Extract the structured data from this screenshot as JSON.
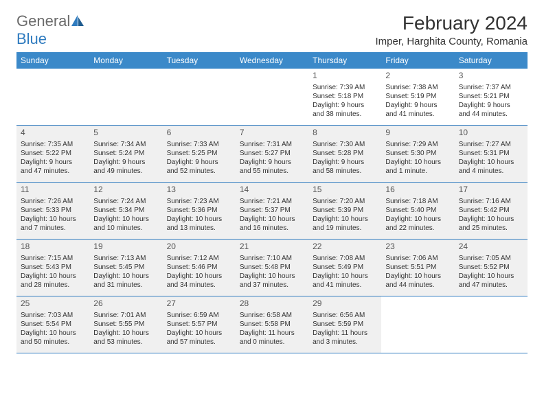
{
  "logo": {
    "general": "General",
    "blue": "Blue"
  },
  "title": "February 2024",
  "location": "Imper, Harghita County, Romania",
  "headers": [
    "Sunday",
    "Monday",
    "Tuesday",
    "Wednesday",
    "Thursday",
    "Friday",
    "Saturday"
  ],
  "colors": {
    "header_bg": "#3b89c9",
    "header_text": "#ffffff",
    "border": "#2f7bbf",
    "shaded": "#f0f0f0",
    "text": "#333333",
    "logo_gray": "#6b6b6b",
    "logo_blue": "#2f7bbf"
  },
  "weeks": [
    [
      {
        "n": "",
        "shaded": false,
        "lines": []
      },
      {
        "n": "",
        "shaded": false,
        "lines": []
      },
      {
        "n": "",
        "shaded": false,
        "lines": []
      },
      {
        "n": "",
        "shaded": false,
        "lines": []
      },
      {
        "n": "1",
        "shaded": false,
        "lines": [
          "Sunrise: 7:39 AM",
          "Sunset: 5:18 PM",
          "Daylight: 9 hours",
          "and 38 minutes."
        ]
      },
      {
        "n": "2",
        "shaded": false,
        "lines": [
          "Sunrise: 7:38 AM",
          "Sunset: 5:19 PM",
          "Daylight: 9 hours",
          "and 41 minutes."
        ]
      },
      {
        "n": "3",
        "shaded": false,
        "lines": [
          "Sunrise: 7:37 AM",
          "Sunset: 5:21 PM",
          "Daylight: 9 hours",
          "and 44 minutes."
        ]
      }
    ],
    [
      {
        "n": "4",
        "shaded": true,
        "lines": [
          "Sunrise: 7:35 AM",
          "Sunset: 5:22 PM",
          "Daylight: 9 hours",
          "and 47 minutes."
        ]
      },
      {
        "n": "5",
        "shaded": true,
        "lines": [
          "Sunrise: 7:34 AM",
          "Sunset: 5:24 PM",
          "Daylight: 9 hours",
          "and 49 minutes."
        ]
      },
      {
        "n": "6",
        "shaded": true,
        "lines": [
          "Sunrise: 7:33 AM",
          "Sunset: 5:25 PM",
          "Daylight: 9 hours",
          "and 52 minutes."
        ]
      },
      {
        "n": "7",
        "shaded": true,
        "lines": [
          "Sunrise: 7:31 AM",
          "Sunset: 5:27 PM",
          "Daylight: 9 hours",
          "and 55 minutes."
        ]
      },
      {
        "n": "8",
        "shaded": true,
        "lines": [
          "Sunrise: 7:30 AM",
          "Sunset: 5:28 PM",
          "Daylight: 9 hours",
          "and 58 minutes."
        ]
      },
      {
        "n": "9",
        "shaded": true,
        "lines": [
          "Sunrise: 7:29 AM",
          "Sunset: 5:30 PM",
          "Daylight: 10 hours",
          "and 1 minute."
        ]
      },
      {
        "n": "10",
        "shaded": true,
        "lines": [
          "Sunrise: 7:27 AM",
          "Sunset: 5:31 PM",
          "Daylight: 10 hours",
          "and 4 minutes."
        ]
      }
    ],
    [
      {
        "n": "11",
        "shaded": true,
        "lines": [
          "Sunrise: 7:26 AM",
          "Sunset: 5:33 PM",
          "Daylight: 10 hours",
          "and 7 minutes."
        ]
      },
      {
        "n": "12",
        "shaded": true,
        "lines": [
          "Sunrise: 7:24 AM",
          "Sunset: 5:34 PM",
          "Daylight: 10 hours",
          "and 10 minutes."
        ]
      },
      {
        "n": "13",
        "shaded": true,
        "lines": [
          "Sunrise: 7:23 AM",
          "Sunset: 5:36 PM",
          "Daylight: 10 hours",
          "and 13 minutes."
        ]
      },
      {
        "n": "14",
        "shaded": true,
        "lines": [
          "Sunrise: 7:21 AM",
          "Sunset: 5:37 PM",
          "Daylight: 10 hours",
          "and 16 minutes."
        ]
      },
      {
        "n": "15",
        "shaded": true,
        "lines": [
          "Sunrise: 7:20 AM",
          "Sunset: 5:39 PM",
          "Daylight: 10 hours",
          "and 19 minutes."
        ]
      },
      {
        "n": "16",
        "shaded": true,
        "lines": [
          "Sunrise: 7:18 AM",
          "Sunset: 5:40 PM",
          "Daylight: 10 hours",
          "and 22 minutes."
        ]
      },
      {
        "n": "17",
        "shaded": true,
        "lines": [
          "Sunrise: 7:16 AM",
          "Sunset: 5:42 PM",
          "Daylight: 10 hours",
          "and 25 minutes."
        ]
      }
    ],
    [
      {
        "n": "18",
        "shaded": true,
        "lines": [
          "Sunrise: 7:15 AM",
          "Sunset: 5:43 PM",
          "Daylight: 10 hours",
          "and 28 minutes."
        ]
      },
      {
        "n": "19",
        "shaded": true,
        "lines": [
          "Sunrise: 7:13 AM",
          "Sunset: 5:45 PM",
          "Daylight: 10 hours",
          "and 31 minutes."
        ]
      },
      {
        "n": "20",
        "shaded": true,
        "lines": [
          "Sunrise: 7:12 AM",
          "Sunset: 5:46 PM",
          "Daylight: 10 hours",
          "and 34 minutes."
        ]
      },
      {
        "n": "21",
        "shaded": true,
        "lines": [
          "Sunrise: 7:10 AM",
          "Sunset: 5:48 PM",
          "Daylight: 10 hours",
          "and 37 minutes."
        ]
      },
      {
        "n": "22",
        "shaded": true,
        "lines": [
          "Sunrise: 7:08 AM",
          "Sunset: 5:49 PM",
          "Daylight: 10 hours",
          "and 41 minutes."
        ]
      },
      {
        "n": "23",
        "shaded": true,
        "lines": [
          "Sunrise: 7:06 AM",
          "Sunset: 5:51 PM",
          "Daylight: 10 hours",
          "and 44 minutes."
        ]
      },
      {
        "n": "24",
        "shaded": true,
        "lines": [
          "Sunrise: 7:05 AM",
          "Sunset: 5:52 PM",
          "Daylight: 10 hours",
          "and 47 minutes."
        ]
      }
    ],
    [
      {
        "n": "25",
        "shaded": true,
        "lines": [
          "Sunrise: 7:03 AM",
          "Sunset: 5:54 PM",
          "Daylight: 10 hours",
          "and 50 minutes."
        ]
      },
      {
        "n": "26",
        "shaded": true,
        "lines": [
          "Sunrise: 7:01 AM",
          "Sunset: 5:55 PM",
          "Daylight: 10 hours",
          "and 53 minutes."
        ]
      },
      {
        "n": "27",
        "shaded": true,
        "lines": [
          "Sunrise: 6:59 AM",
          "Sunset: 5:57 PM",
          "Daylight: 10 hours",
          "and 57 minutes."
        ]
      },
      {
        "n": "28",
        "shaded": true,
        "lines": [
          "Sunrise: 6:58 AM",
          "Sunset: 5:58 PM",
          "Daylight: 11 hours",
          "and 0 minutes."
        ]
      },
      {
        "n": "29",
        "shaded": true,
        "lines": [
          "Sunrise: 6:56 AM",
          "Sunset: 5:59 PM",
          "Daylight: 11 hours",
          "and 3 minutes."
        ]
      },
      {
        "n": "",
        "shaded": false,
        "lines": []
      },
      {
        "n": "",
        "shaded": false,
        "lines": []
      }
    ]
  ]
}
